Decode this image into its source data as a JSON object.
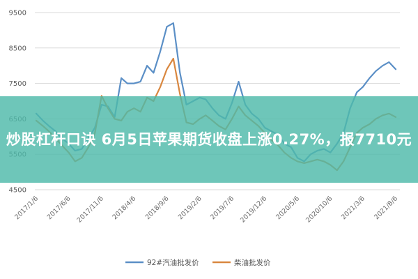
{
  "banner": {
    "title": "炒股杠杆口诀 6月5日苹果期货收盘上涨0.27%，报7710元"
  },
  "chart_data": {
    "type": "line",
    "title": "",
    "xlabel": "",
    "ylabel": "",
    "ylim": [
      4500,
      9500
    ],
    "yticks": [
      4500,
      5500,
      6500,
      7500,
      8500,
      9500
    ],
    "x_tick_labels": [
      "2017/1/6",
      "2017/6/6",
      "2017/11/6",
      "2018/4/6",
      "2018/9/6",
      "2019/2/6",
      "2019/7/6",
      "2019/12/6",
      "2020/5/6",
      "2020/10/6",
      "2021/3/6",
      "2021/8/6"
    ],
    "legend_position": "bottom",
    "grid": "horizontal",
    "series": [
      {
        "name": "92#汽油批发价",
        "color": "#5b8fc6",
        "points": [
          [
            "2017/1/6",
            6650
          ],
          [
            "2017/2/6",
            6450
          ],
          [
            "2017/3/6",
            6300
          ],
          [
            "2017/4/6",
            6150
          ],
          [
            "2017/5/6",
            5950
          ],
          [
            "2017/6/6",
            5800
          ],
          [
            "2017/7/6",
            5600
          ],
          [
            "2017/8/6",
            5650
          ],
          [
            "2017/9/6",
            5950
          ],
          [
            "2017/10/6",
            6250
          ],
          [
            "2017/11/6",
            6900
          ],
          [
            "2017/12/6",
            6850
          ],
          [
            "2018/1/6",
            6550
          ],
          [
            "2018/2/6",
            7650
          ],
          [
            "2018/3/6",
            7500
          ],
          [
            "2018/4/6",
            7500
          ],
          [
            "2018/5/6",
            7550
          ],
          [
            "2018/6/6",
            8000
          ],
          [
            "2018/7/6",
            7800
          ],
          [
            "2018/8/6",
            8400
          ],
          [
            "2018/9/6",
            9100
          ],
          [
            "2018/10/6",
            9200
          ],
          [
            "2018/11/6",
            7800
          ],
          [
            "2018/12/6",
            6900
          ],
          [
            "2019/1/6",
            7000
          ],
          [
            "2019/2/6",
            7100
          ],
          [
            "2019/3/6",
            7050
          ],
          [
            "2019/4/6",
            6800
          ],
          [
            "2019/5/6",
            6600
          ],
          [
            "2019/6/6",
            6500
          ],
          [
            "2019/7/6",
            6950
          ],
          [
            "2019/8/6",
            7550
          ],
          [
            "2019/9/6",
            6900
          ],
          [
            "2019/10/6",
            6650
          ],
          [
            "2019/11/6",
            6500
          ],
          [
            "2019/12/6",
            6250
          ],
          [
            "2020/1/6",
            6150
          ],
          [
            "2020/2/6",
            6050
          ],
          [
            "2020/3/6",
            5800
          ],
          [
            "2020/4/6",
            5700
          ],
          [
            "2020/5/6",
            5400
          ],
          [
            "2020/6/6",
            5300
          ],
          [
            "2020/7/6",
            5500
          ],
          [
            "2020/8/6",
            5600
          ],
          [
            "2020/9/6",
            5650
          ],
          [
            "2020/10/6",
            5550
          ],
          [
            "2020/11/6",
            5800
          ],
          [
            "2020/12/6",
            6100
          ],
          [
            "2021/1/6",
            6800
          ],
          [
            "2021/2/6",
            7250
          ],
          [
            "2021/3/6",
            7400
          ],
          [
            "2021/4/6",
            7650
          ],
          [
            "2021/5/6",
            7850
          ],
          [
            "2021/6/6",
            8000
          ],
          [
            "2021/7/6",
            8100
          ],
          [
            "2021/8/6",
            7900
          ]
        ]
      },
      {
        "name": "柴油批发价",
        "color": "#d9873f",
        "points": [
          [
            "2017/1/6",
            6450
          ],
          [
            "2017/2/6",
            6300
          ],
          [
            "2017/3/6",
            6150
          ],
          [
            "2017/4/6",
            5950
          ],
          [
            "2017/5/6",
            5750
          ],
          [
            "2017/6/6",
            5550
          ],
          [
            "2017/7/6",
            5300
          ],
          [
            "2017/8/6",
            5400
          ],
          [
            "2017/9/6",
            5700
          ],
          [
            "2017/10/6",
            6100
          ],
          [
            "2017/11/6",
            7150
          ],
          [
            "2017/12/6",
            6800
          ],
          [
            "2018/1/6",
            6500
          ],
          [
            "2018/2/6",
            6450
          ],
          [
            "2018/3/6",
            6700
          ],
          [
            "2018/4/6",
            6800
          ],
          [
            "2018/5/6",
            6700
          ],
          [
            "2018/6/6",
            7100
          ],
          [
            "2018/7/6",
            7000
          ],
          [
            "2018/8/6",
            7400
          ],
          [
            "2018/9/6",
            7900
          ],
          [
            "2018/10/6",
            8200
          ],
          [
            "2018/11/6",
            7200
          ],
          [
            "2018/12/6",
            6400
          ],
          [
            "2019/1/6",
            6350
          ],
          [
            "2019/2/6",
            6500
          ],
          [
            "2019/3/6",
            6600
          ],
          [
            "2019/4/6",
            6450
          ],
          [
            "2019/5/6",
            6300
          ],
          [
            "2019/6/6",
            6200
          ],
          [
            "2019/7/6",
            6500
          ],
          [
            "2019/8/6",
            6850
          ],
          [
            "2019/9/6",
            6600
          ],
          [
            "2019/10/6",
            6450
          ],
          [
            "2019/11/6",
            6300
          ],
          [
            "2019/12/6",
            6100
          ],
          [
            "2020/1/6",
            5900
          ],
          [
            "2020/2/6",
            5750
          ],
          [
            "2020/3/6",
            5550
          ],
          [
            "2020/4/6",
            5400
          ],
          [
            "2020/5/6",
            5300
          ],
          [
            "2020/6/6",
            5250
          ],
          [
            "2020/7/6",
            5300
          ],
          [
            "2020/8/6",
            5350
          ],
          [
            "2020/9/6",
            5300
          ],
          [
            "2020/10/6",
            5200
          ],
          [
            "2020/11/6",
            5050
          ],
          [
            "2020/12/6",
            5300
          ],
          [
            "2021/1/6",
            5700
          ],
          [
            "2021/2/6",
            6100
          ],
          [
            "2021/3/6",
            6250
          ],
          [
            "2021/4/6",
            6350
          ],
          [
            "2021/5/6",
            6500
          ],
          [
            "2021/6/6",
            6600
          ],
          [
            "2021/7/6",
            6650
          ],
          [
            "2021/8/6",
            6550
          ]
        ]
      }
    ]
  }
}
